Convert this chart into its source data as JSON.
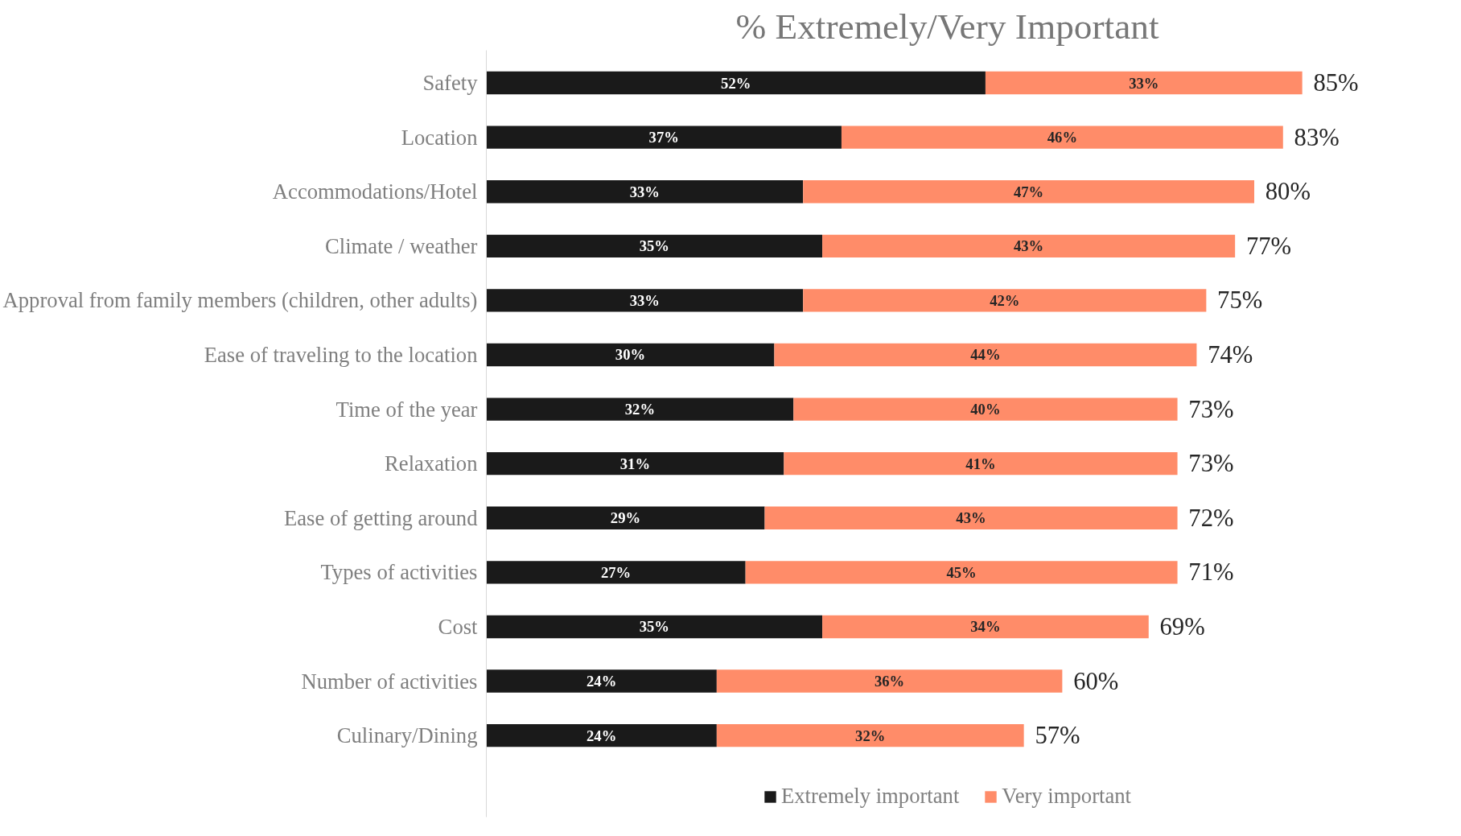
{
  "chart_data": {
    "type": "bar",
    "orientation": "horizontal",
    "stacked": true,
    "title": "% Extremely/Very Important",
    "categories": [
      "Safety",
      "Location",
      "Accommodations/Hotel",
      "Climate / weather",
      "Approval from family members (children, other adults)",
      "Ease of traveling to the location",
      "Time of the year",
      "Relaxation",
      "Ease of getting around",
      "Types of activities",
      "Cost",
      "Number of activities",
      "Culinary/Dining"
    ],
    "series": [
      {
        "name": "Extremely important",
        "color": "#1a1a1a",
        "values": [
          52,
          37,
          33,
          35,
          33,
          30,
          32,
          31,
          29,
          27,
          35,
          24,
          24
        ],
        "value_labels": [
          "52%",
          "37%",
          "33%",
          "35%",
          "33%",
          "30%",
          "32%",
          "31%",
          "29%",
          "27%",
          "35%",
          "24%",
          "24%"
        ]
      },
      {
        "name": "Very important",
        "color": "#ff8c69",
        "values": [
          33,
          46,
          47,
          43,
          42,
          44,
          40,
          41,
          43,
          45,
          34,
          36,
          32
        ],
        "value_labels": [
          "33%",
          "46%",
          "47%",
          "43%",
          "42%",
          "44%",
          "40%",
          "41%",
          "43%",
          "45%",
          "34%",
          "36%",
          "32%"
        ]
      }
    ],
    "totals": [
      "85%",
      "83%",
      "80%",
      "77%",
      "75%",
      "74%",
      "73%",
      "73%",
      "72%",
      "71%",
      "69%",
      "60%",
      "57%"
    ],
    "tick_labels": "y",
    "grid": false,
    "legend": "bottom"
  }
}
